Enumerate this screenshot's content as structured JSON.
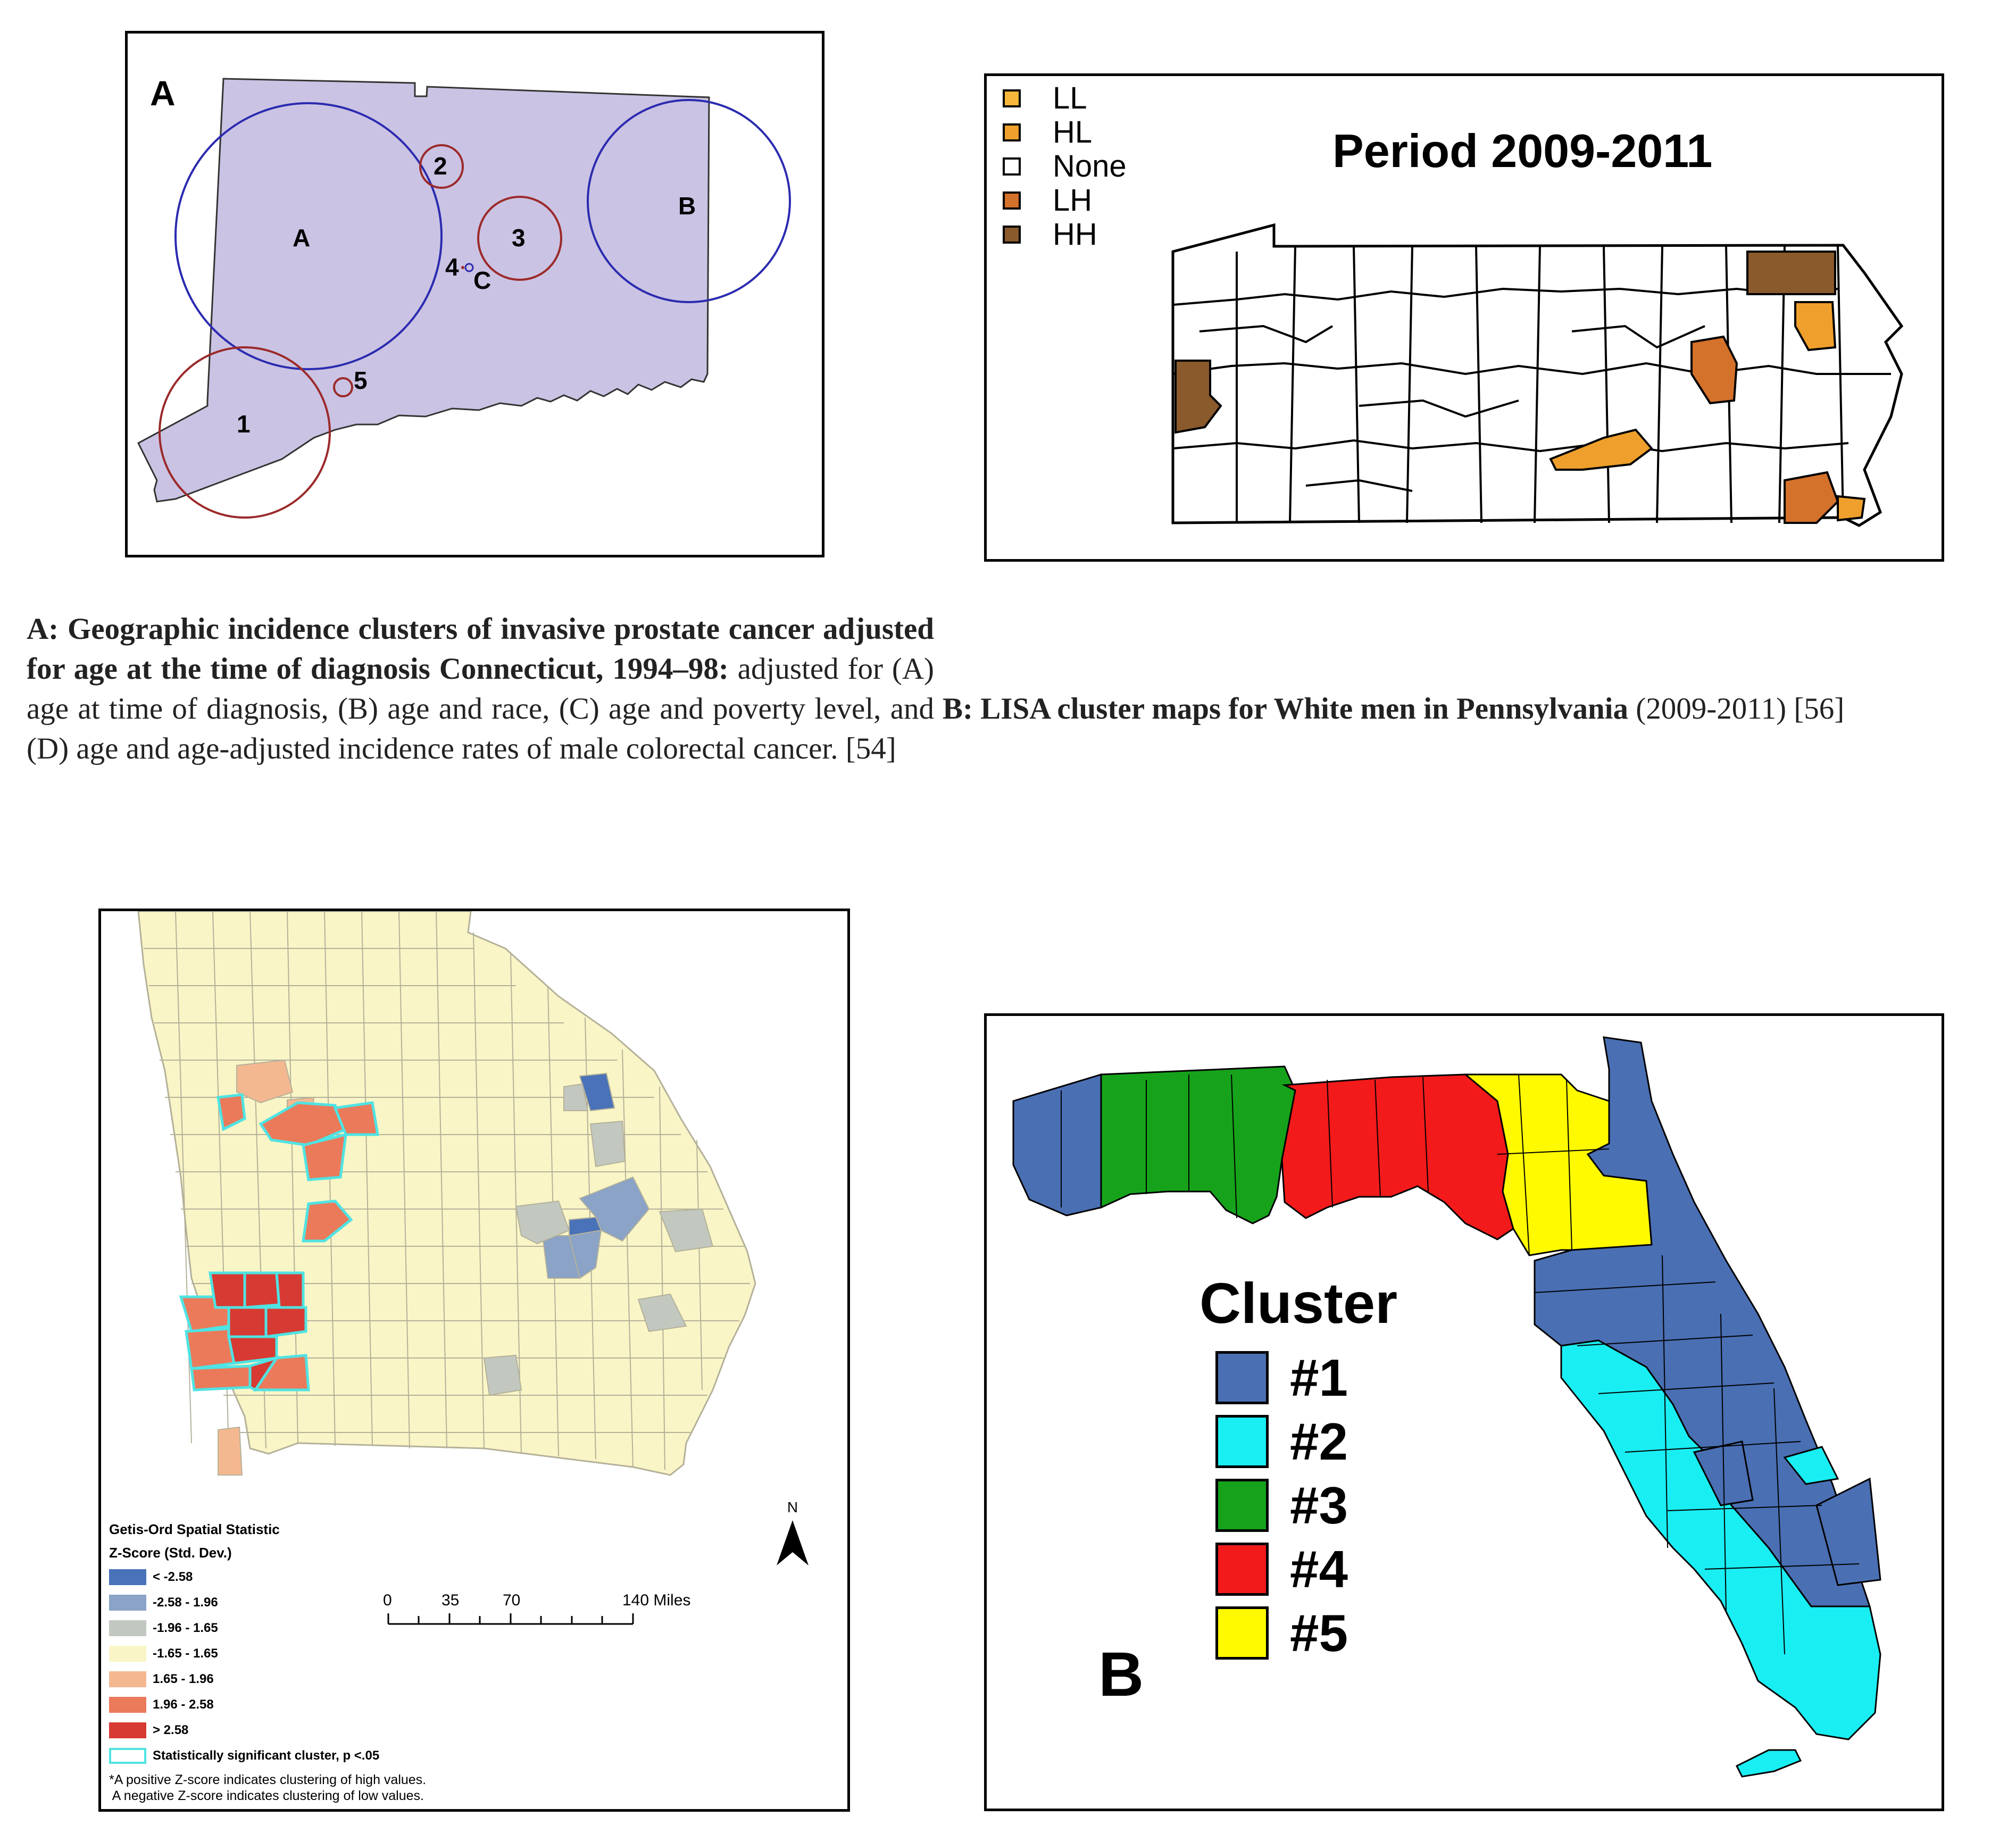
{
  "panel_ct": {
    "panel_letter": "A",
    "cluster_labels": [
      "A",
      "B",
      "C",
      "1",
      "2",
      "3",
      "4",
      "5"
    ],
    "colors": {
      "state_fill": "#cbc3e3",
      "primary_cluster": "#2b2bb0",
      "secondary_cluster": "#9b2a2a"
    }
  },
  "panel_pa": {
    "title": "Period 2009-2011",
    "legend": [
      {
        "label": "LL",
        "color": "#f6b73a"
      },
      {
        "label": "HL",
        "color": "#efa02c"
      },
      {
        "label": "None",
        "color": "#ffffff"
      },
      {
        "label": "LH",
        "color": "#d4712a"
      },
      {
        "label": "HH",
        "color": "#8a5a2c"
      }
    ]
  },
  "caption_a": {
    "bold": "A: Geographic incidence clusters of invasive prostate cancer adjusted for age at the time of diagnosis Connecticut, 1994–98:",
    "text": " adjusted for (A) age at time of diagnosis, (B) age and race, (C) age and poverty level, and (D) age and age-adjusted incidence rates of male colorectal cancer. [54]"
  },
  "caption_b": {
    "bold": "B: LISA cluster maps for White men in Pennsylvania",
    "text": " (2009-2011) [56]"
  },
  "panel_ga": {
    "legend_title_1": "Getis-Ord Spatial Statistic",
    "legend_title_2": "Z-Score (Std. Dev.)",
    "legend": [
      {
        "label": "< -2.58",
        "color": "#4a72b8"
      },
      {
        "label": "-2.58 - 1.96",
        "color": "#8aa3c6"
      },
      {
        "label": "-1.96 - 1.65",
        "color": "#c2c8bf"
      },
      {
        "label": "-1.65 - 1.65",
        "color": "#faf5c6"
      },
      {
        "label": "1.65 - 1.96",
        "color": "#f4b890"
      },
      {
        "label": "1.96 - 2.58",
        "color": "#eb7a5a"
      },
      {
        "label": "> 2.58",
        "color": "#d73a32"
      }
    ],
    "cluster_label": "Statistically significant cluster, p <.05",
    "cluster_outline": "#4fe3e3",
    "note_1": "*A positive Z-score indicates clustering of high values.",
    "note_2": " A negative Z-score indicates clustering of low values.",
    "north": "N",
    "scale_ticks": [
      "0",
      "35",
      "70",
      "140 Miles"
    ]
  },
  "panel_fl": {
    "legend_title": "Cluster",
    "panel_letter": "B",
    "legend": [
      {
        "label": "#1",
        "color": "#4a6fb3"
      },
      {
        "label": "#2",
        "color": "#19eef3"
      },
      {
        "label": "#3",
        "color": "#16a31b"
      },
      {
        "label": "#4",
        "color": "#f21a1a"
      },
      {
        "label": "#5",
        "color": "#fffa00"
      }
    ]
  }
}
